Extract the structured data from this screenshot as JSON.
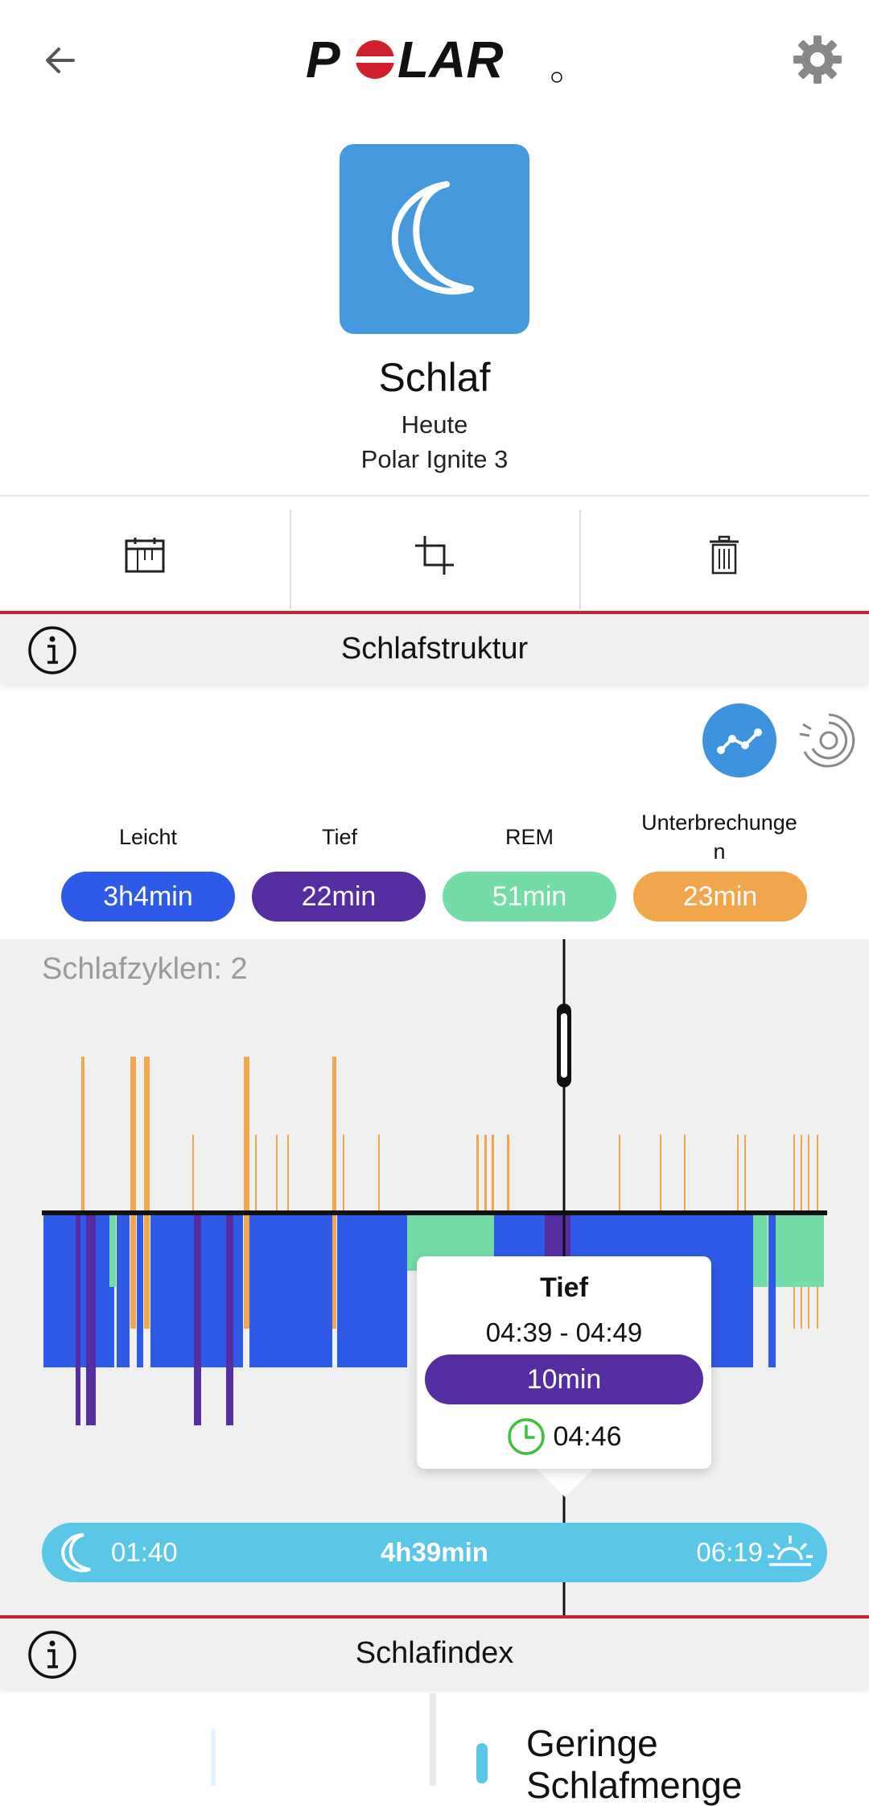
{
  "header": {
    "logo_text": "POLAR",
    "logo_color": "#d0202e"
  },
  "icons": {
    "back": "arrow-left-icon",
    "settings": "gear-icon",
    "sleep": "moon-icon",
    "calendar": "calendar-icon",
    "crop": "crop-icon",
    "delete": "trash-icon",
    "info": "info-icon",
    "graph_view": "line-graph-icon",
    "radial_view": "radial-icon",
    "sleep_start": "moon-icon",
    "sleep_end": "sunrise-icon",
    "clock": "clock-icon"
  },
  "summary": {
    "title": "Schlaf",
    "day": "Heute",
    "device": "Polar Ignite 3"
  },
  "sections": {
    "structure": "Schlafstruktur",
    "index": "Schlafindex"
  },
  "legend": [
    {
      "label": "Leicht",
      "value": "3h4min",
      "color": "#2d5be8"
    },
    {
      "label": "Tief",
      "value": "22min",
      "color": "#562da0"
    },
    {
      "label": "REM",
      "value": "51min",
      "color": "#74dca6"
    },
    {
      "label": "Unterbrechunge\nn",
      "value": "23min",
      "color": "#f2a64b"
    }
  ],
  "chart": {
    "cycles_text": "Schlafzyklen: 2"
  },
  "tooltip": {
    "title": "Tief",
    "range": "04:39 - 04:49",
    "duration": "10min",
    "time": "04:46"
  },
  "timeline": {
    "start": "01:40",
    "duration": "4h39min",
    "end": "06:19"
  },
  "bottom": {
    "card_text": "Geringe\nSchlafmenge"
  },
  "colors": {
    "accent_red": "#d0202e",
    "chart_bg": "#f0f0f0",
    "timeline": "#5bc7e6",
    "toggle": "#3d93de"
  }
}
